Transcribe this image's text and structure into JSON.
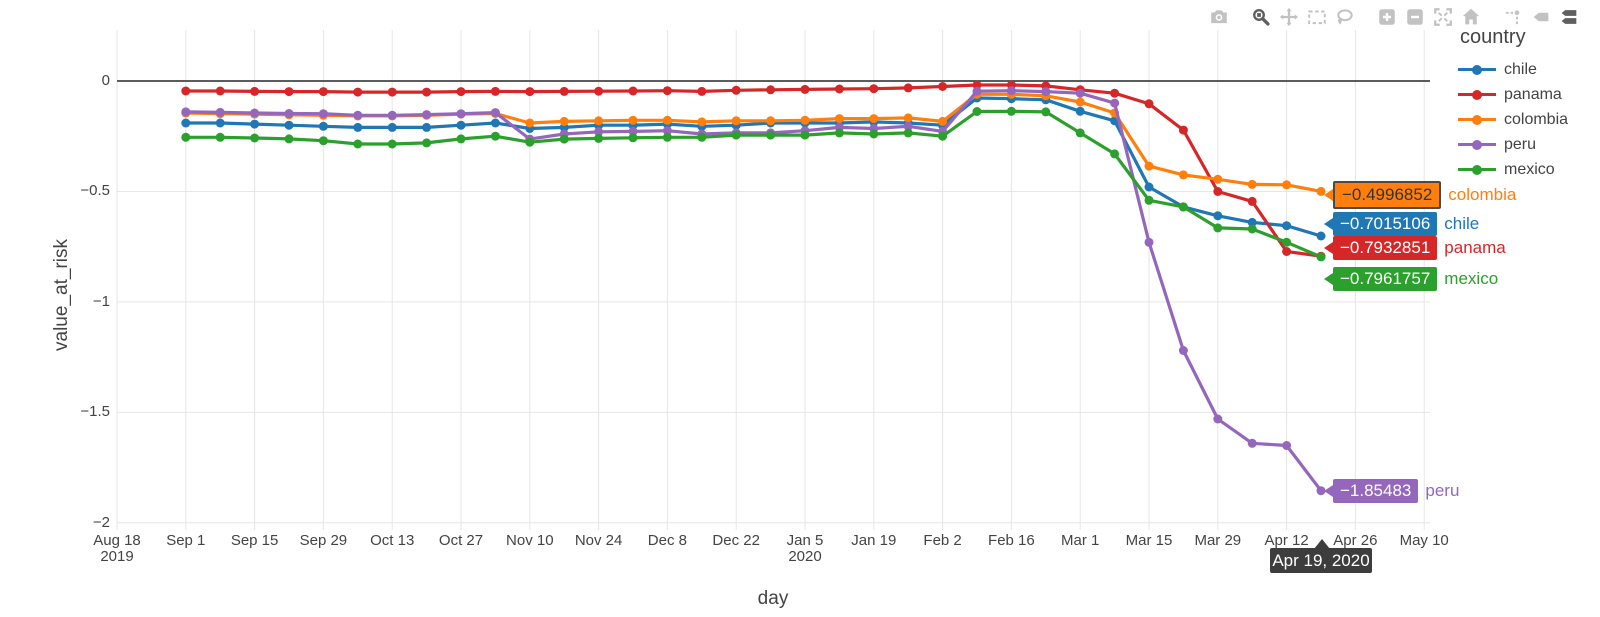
{
  "modebar": {
    "buttons": [
      {
        "name": "download-plot-as-png",
        "icon": "camera",
        "group": 0,
        "active": false
      },
      {
        "name": "zoom",
        "icon": "magnifier",
        "group": 1,
        "active": true
      },
      {
        "name": "pan",
        "icon": "pan",
        "group": 1,
        "active": false
      },
      {
        "name": "box-select",
        "icon": "box-select",
        "group": 1,
        "active": false
      },
      {
        "name": "lasso-select",
        "icon": "lasso",
        "group": 1,
        "active": false
      },
      {
        "name": "zoom-in",
        "icon": "zoom-in",
        "group": 2,
        "active": false
      },
      {
        "name": "zoom-out",
        "icon": "zoom-out",
        "group": 2,
        "active": false
      },
      {
        "name": "autoscale",
        "icon": "autoscale",
        "group": 2,
        "active": false
      },
      {
        "name": "reset-axes",
        "icon": "home",
        "group": 2,
        "active": false
      },
      {
        "name": "toggle-spike-lines",
        "icon": "spikelines",
        "group": 3,
        "active": false
      },
      {
        "name": "show-closest-on-hover",
        "icon": "hover-closest",
        "group": 3,
        "active": false
      },
      {
        "name": "compare-data-on-hover",
        "icon": "hover-compare",
        "group": 3,
        "active": true
      }
    ],
    "inactive_color": "#c2c2c2",
    "active_color": "#5f5f5f"
  },
  "legend": {
    "title": "country",
    "items": [
      {
        "label": "chile",
        "color": "#1f77b4"
      },
      {
        "label": "panama",
        "color": "#d62728"
      },
      {
        "label": "colombia",
        "color": "#ff7f0e"
      },
      {
        "label": "peru",
        "color": "#9467bd"
      },
      {
        "label": "mexico",
        "color": "#2ca02c"
      }
    ]
  },
  "hover_labels": [
    {
      "series": "colombia",
      "value_text": "−0.4996852",
      "box_color": "#ff7f0e",
      "text_color": "#333333",
      "highlighted": true
    },
    {
      "series": "chile",
      "value_text": "−0.7015106",
      "box_color": "#1f77b4",
      "text_color": "#ffffff",
      "highlighted": false
    },
    {
      "series": "panama",
      "value_text": "−0.7932851",
      "box_color": "#d62728",
      "text_color": "#ffffff",
      "highlighted": false
    },
    {
      "series": "mexico",
      "value_text": "−0.7961757",
      "box_color": "#2ca02c",
      "text_color": "#ffffff",
      "highlighted": false
    },
    {
      "series": "peru",
      "value_text": "−1.85483",
      "box_color": "#9467bd",
      "text_color": "#ffffff",
      "highlighted": false
    }
  ],
  "x_hover_label": {
    "text": "Apr 19, 2020"
  },
  "chart_data": {
    "type": "line",
    "title": "",
    "xlabel": "day",
    "ylabel": "value_at_risk",
    "legend_position": "right",
    "grid": true,
    "grid_color": "#e6e6e6",
    "zero_line_color": "#444444",
    "axis_text_color": "#444444",
    "ylim": [
      -2.01,
      0.24
    ],
    "yticks": [
      {
        "label": "0",
        "value": 0
      },
      {
        "label": "−0.5",
        "value": -0.5
      },
      {
        "label": "−1",
        "value": -1
      },
      {
        "label": "−1.5",
        "value": -1.5
      },
      {
        "label": "−2",
        "value": -2
      }
    ],
    "xticks": [
      {
        "label": "Aug 18",
        "sub": "2019"
      },
      {
        "label": "Sep 1"
      },
      {
        "label": "Sep 15"
      },
      {
        "label": "Sep 29"
      },
      {
        "label": "Oct 13"
      },
      {
        "label": "Oct 27"
      },
      {
        "label": "Nov 10"
      },
      {
        "label": "Nov 24"
      },
      {
        "label": "Dec 8"
      },
      {
        "label": "Dec 22"
      },
      {
        "label": "Jan 5",
        "sub": "2020"
      },
      {
        "label": "Jan 19"
      },
      {
        "label": "Feb 2"
      },
      {
        "label": "Feb 16"
      },
      {
        "label": "Mar 1"
      },
      {
        "label": "Mar 15"
      },
      {
        "label": "Mar 29"
      },
      {
        "label": "Apr 12"
      },
      {
        "label": "Apr 26"
      },
      {
        "label": "May 10"
      }
    ],
    "x": [
      "2019-09-01",
      "2019-09-08",
      "2019-09-15",
      "2019-09-22",
      "2019-09-29",
      "2019-10-06",
      "2019-10-13",
      "2019-10-20",
      "2019-10-27",
      "2019-11-03",
      "2019-11-10",
      "2019-11-17",
      "2019-11-24",
      "2019-12-01",
      "2019-12-08",
      "2019-12-15",
      "2019-12-22",
      "2019-12-29",
      "2020-01-05",
      "2020-01-12",
      "2020-01-19",
      "2020-01-26",
      "2020-02-02",
      "2020-02-09",
      "2020-02-16",
      "2020-02-23",
      "2020-03-01",
      "2020-03-08",
      "2020-03-15",
      "2020-03-22",
      "2020-03-29",
      "2020-04-05",
      "2020-04-12",
      "2020-04-19"
    ],
    "series": [
      {
        "name": "chile",
        "color": "#1f77b4",
        "values": [
          -0.19,
          -0.19,
          -0.195,
          -0.2,
          -0.205,
          -0.21,
          -0.21,
          -0.21,
          -0.2,
          -0.19,
          -0.215,
          -0.21,
          -0.2,
          -0.2,
          -0.195,
          -0.205,
          -0.2,
          -0.19,
          -0.19,
          -0.19,
          -0.185,
          -0.19,
          -0.2,
          -0.077,
          -0.08,
          -0.085,
          -0.137,
          -0.18,
          -0.48,
          -0.57,
          -0.61,
          -0.64,
          -0.655,
          -0.7015106
        ]
      },
      {
        "name": "panama",
        "color": "#d62728",
        "values": [
          -0.045,
          -0.045,
          -0.047,
          -0.048,
          -0.048,
          -0.05,
          -0.05,
          -0.05,
          -0.048,
          -0.047,
          -0.048,
          -0.047,
          -0.046,
          -0.045,
          -0.044,
          -0.047,
          -0.042,
          -0.04,
          -0.038,
          -0.036,
          -0.035,
          -0.031,
          -0.025,
          -0.018,
          -0.018,
          -0.022,
          -0.04,
          -0.055,
          -0.103,
          -0.222,
          -0.5,
          -0.545,
          -0.772,
          -0.7932851
        ]
      },
      {
        "name": "colombia",
        "color": "#ff7f0e",
        "values": [
          -0.145,
          -0.148,
          -0.15,
          -0.153,
          -0.155,
          -0.158,
          -0.158,
          -0.155,
          -0.15,
          -0.147,
          -0.19,
          -0.183,
          -0.18,
          -0.178,
          -0.178,
          -0.185,
          -0.18,
          -0.18,
          -0.178,
          -0.17,
          -0.17,
          -0.167,
          -0.183,
          -0.06,
          -0.06,
          -0.067,
          -0.095,
          -0.145,
          -0.385,
          -0.425,
          -0.445,
          -0.468,
          -0.47,
          -0.4996852
        ]
      },
      {
        "name": "peru",
        "color": "#9467bd",
        "values": [
          -0.14,
          -0.142,
          -0.145,
          -0.147,
          -0.148,
          -0.155,
          -0.155,
          -0.152,
          -0.148,
          -0.143,
          -0.263,
          -0.24,
          -0.23,
          -0.228,
          -0.225,
          -0.24,
          -0.235,
          -0.235,
          -0.225,
          -0.21,
          -0.215,
          -0.205,
          -0.228,
          -0.046,
          -0.044,
          -0.048,
          -0.055,
          -0.1,
          -0.73,
          -1.22,
          -1.53,
          -1.64,
          -1.65,
          -1.85483
        ]
      },
      {
        "name": "mexico",
        "color": "#2ca02c",
        "values": [
          -0.255,
          -0.255,
          -0.258,
          -0.262,
          -0.27,
          -0.285,
          -0.285,
          -0.28,
          -0.262,
          -0.25,
          -0.277,
          -0.263,
          -0.26,
          -0.257,
          -0.255,
          -0.255,
          -0.245,
          -0.245,
          -0.245,
          -0.235,
          -0.24,
          -0.235,
          -0.25,
          -0.138,
          -0.137,
          -0.14,
          -0.235,
          -0.33,
          -0.54,
          -0.57,
          -0.665,
          -0.67,
          -0.73,
          -0.7961757
        ]
      }
    ]
  }
}
